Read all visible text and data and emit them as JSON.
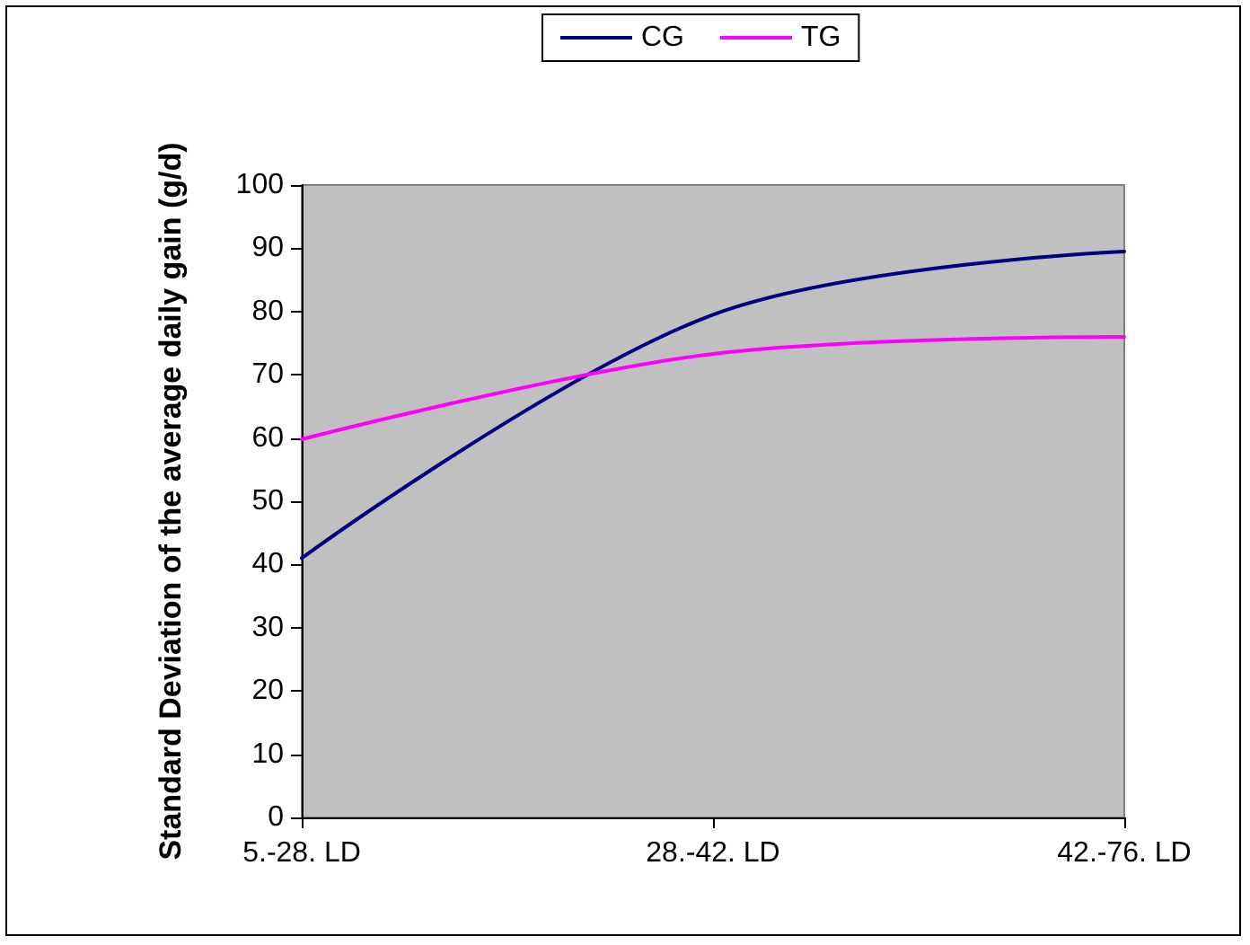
{
  "chart_data": {
    "type": "line",
    "ylabel": "Standard Deviation of the average daily gain (g/d)",
    "categories": [
      "5.-28. LD",
      "28.-42. LD",
      "42.-76. LD"
    ],
    "series": [
      {
        "name": "CG",
        "color": "#000080",
        "values": [
          41,
          79.5,
          89.5
        ]
      },
      {
        "name": "TG",
        "color": "#ff00ff",
        "values": [
          59.8,
          73.3,
          76
        ]
      }
    ],
    "ylim": [
      0,
      100
    ],
    "yticks": [
      0,
      10,
      20,
      30,
      40,
      50,
      60,
      70,
      80,
      90,
      100
    ],
    "grid": false,
    "legend": "top",
    "marker": "none",
    "line_style": "solid"
  }
}
